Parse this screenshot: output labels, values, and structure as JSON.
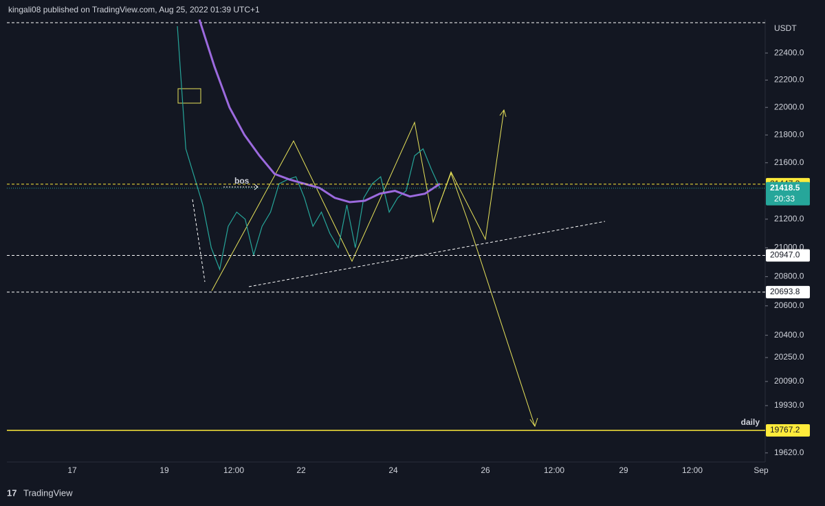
{
  "header": {
    "text": "kingali08 published on TradingView.com, Aug 25, 2022 01:39 UTC+1"
  },
  "footer": {
    "brand": "TradingView"
  },
  "chart_data": {
    "type": "line",
    "currency": "USDT",
    "log_scale": true,
    "ylim": [
      19561,
      22652
    ],
    "yticks": [
      {
        "value": 22400,
        "label": "22400.0"
      },
      {
        "value": 22200,
        "label": "22200.0"
      },
      {
        "value": 22000,
        "label": "22000.0"
      },
      {
        "value": 21800,
        "label": "21800.0"
      },
      {
        "value": 21600,
        "label": "21600.0"
      },
      {
        "value": 21200,
        "label": "21200.0"
      },
      {
        "value": 21000,
        "label": "21000.0"
      },
      {
        "value": 20800,
        "label": "20800.0"
      },
      {
        "value": 20600,
        "label": "20600.0"
      },
      {
        "value": 20400,
        "label": "20400.0"
      },
      {
        "value": 20250,
        "label": "20250.0"
      },
      {
        "value": 20090,
        "label": "20090.0"
      },
      {
        "value": 19930,
        "label": "19930.0"
      },
      {
        "value": 19620,
        "label": "19620.0"
      }
    ],
    "x_labels": [
      "17",
      "19",
      "12:00",
      "22",
      "24",
      "26",
      "12:00",
      "29",
      "12:00",
      "Sep"
    ],
    "series": [
      {
        "color": "#26a69a",
        "values": [
          22600,
          21700,
          21500,
          21300,
          21000,
          20850,
          21150,
          21250,
          21200,
          20950,
          21150,
          21250,
          21450,
          21480,
          21500,
          21350,
          21150,
          21250,
          21100,
          21000,
          21300,
          21000,
          21350,
          21450,
          21500,
          21250,
          21350,
          21400,
          21650,
          21700,
          21550,
          21418.5
        ]
      },
      {
        "color": "#9c6ade",
        "values": [
          22650,
          22300,
          22000,
          21800,
          21650,
          21520,
          21480,
          21450,
          21420,
          21350,
          21320,
          21330,
          21380,
          21400,
          21360,
          21380,
          21450
        ]
      }
    ],
    "levels": [
      {
        "price": 21447.3,
        "color": "#ffeb3b",
        "dashed": true
      },
      {
        "price": {
          "value": 20947,
          "label": "20947.0"
        },
        "color": "#ffffff",
        "dashed": true
      },
      {
        "price": 20693.8,
        "color": "#ffffff",
        "dashed": true
      },
      {
        "price": 19767.2,
        "color": "#ffeb3b",
        "dashed": false,
        "note": "daily"
      }
    ],
    "last_price": {
      "price": 21418.5,
      "countdown": "20:33",
      "color": "#26a69a"
    },
    "annotation": "bos"
  }
}
